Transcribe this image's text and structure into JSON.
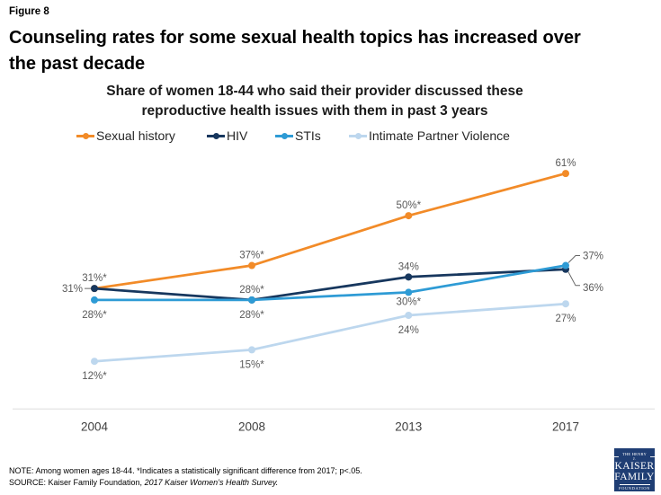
{
  "figure_label": "Figure 8",
  "title": {
    "line1": "Counseling rates for some sexual health topics has increased over",
    "line2": "the past decade"
  },
  "subtitle": {
    "line1": "Share of women 18-44 who said their provider discussed these",
    "line2": "reproductive health issues with them in past 3 years"
  },
  "chart_data": {
    "type": "line",
    "x": [
      "2004",
      "2008",
      "2013",
      "2017"
    ],
    "ylim": [
      0,
      65
    ],
    "grid": false,
    "legend_position": "top",
    "series": [
      {
        "name": "Sexual history",
        "color": "#F28B28",
        "values": [
          31,
          37,
          50,
          61
        ],
        "point_labels": [
          "31%*",
          "37%*",
          "50%*",
          "61%"
        ],
        "label_pos": [
          "above",
          "above",
          "above",
          "above"
        ]
      },
      {
        "name": "HIV",
        "color": "#17375E",
        "values": [
          31,
          28,
          34,
          36
        ],
        "point_labels": [
          "31%",
          "28%*",
          "34%",
          "36%"
        ],
        "label_pos": [
          "left",
          "above",
          "above",
          "right-down"
        ]
      },
      {
        "name": "STIs",
        "color": "#2E9BD5",
        "values": [
          28,
          28,
          30,
          37
        ],
        "point_labels": [
          "28%*",
          "28%*",
          "30%*",
          "37%"
        ],
        "label_pos": [
          "below",
          "below",
          "below-tight",
          "right-up"
        ]
      },
      {
        "name": "Intimate Partner Violence",
        "color": "#BDD7EE",
        "values": [
          12,
          15,
          24,
          27
        ],
        "point_labels": [
          "12%*",
          "15%*",
          "24%",
          "27%"
        ],
        "label_pos": [
          "below",
          "below",
          "below",
          "below"
        ]
      }
    ]
  },
  "footer": {
    "note": "NOTE:  Among women ages 18-44. *Indicates a statistically significant difference from 2017; p<.05.",
    "source_prefix": "SOURCE:  Kaiser Family Foundation, ",
    "source_italic": "2017 Kaiser Women’s Health Survey."
  },
  "logo": {
    "top": "THE HENRY J.",
    "name1": "KAISER",
    "name2": "FAMILY",
    "bottom": "FOUNDATION"
  },
  "colors": {
    "axis_line": "#E8E8E8",
    "data_label": "#595959",
    "tick_label": "#3F3F3F",
    "leader_line": "#666666",
    "logo_bg": "#1F3E74"
  }
}
